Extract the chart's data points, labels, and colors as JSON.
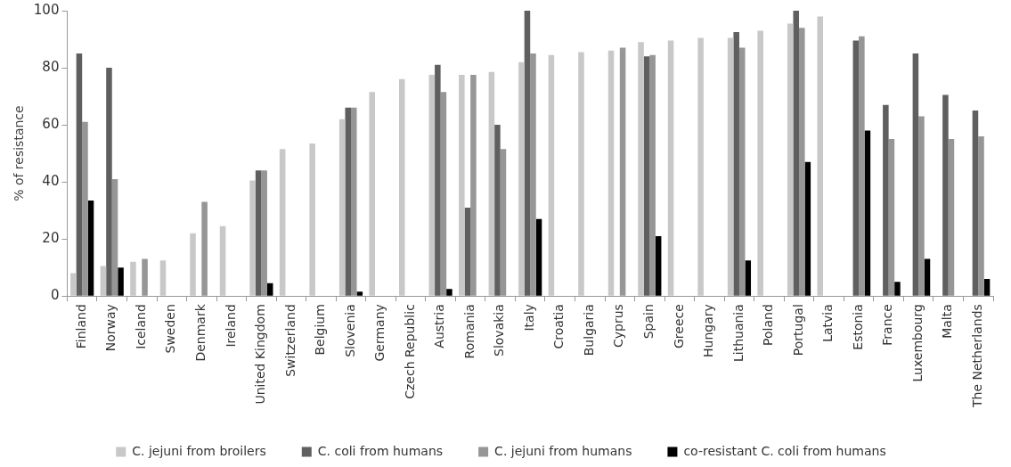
{
  "chart_data": {
    "type": "bar",
    "ylabel": "% of resistance",
    "categories": [
      "Finland",
      "Norway",
      "Iceland",
      "Sweden",
      "Denmark",
      "Ireland",
      "United Kingdom",
      "Switzerland",
      "Belgium",
      "Slovenia",
      "Germany",
      "Czech Republic",
      "Austria",
      "Romania",
      "Slovakia",
      "Italy",
      "Croatia",
      "Bulgaria",
      "Cyprus",
      "Spain",
      "Greece",
      "Hungary",
      "Lithuania",
      "Poland",
      "Portugal",
      "Latvia",
      "Estonia",
      "France",
      "Luxembourg",
      "Malta",
      "The Netherlands"
    ],
    "series": [
      {
        "name": "C. jejuni from broilers",
        "color": "#c8c8c8",
        "values": [
          8,
          10.5,
          12,
          12.5,
          22,
          24.5,
          40.5,
          51.5,
          53.5,
          62,
          71.5,
          76,
          77.5,
          77.5,
          78.5,
          82,
          84.5,
          85.5,
          86,
          89,
          89.5,
          90.5,
          90.5,
          93,
          95.5,
          98,
          null,
          null,
          null,
          null,
          null
        ]
      },
      {
        "name": "C. coli from humans",
        "color": "#5f5f5f",
        "values": [
          85,
          80,
          null,
          null,
          null,
          null,
          44,
          null,
          null,
          66,
          null,
          null,
          81,
          31,
          60,
          100,
          null,
          null,
          null,
          84,
          null,
          null,
          92.5,
          null,
          100,
          null,
          89.5,
          67,
          85,
          70.5,
          65
        ]
      },
      {
        "name": "C. jejuni from humans",
        "color": "#969696",
        "values": [
          61,
          41,
          13,
          null,
          33,
          null,
          44,
          null,
          null,
          66,
          null,
          null,
          71.5,
          77.5,
          51.5,
          85,
          null,
          null,
          87,
          84.5,
          null,
          null,
          87,
          null,
          94,
          null,
          91,
          55,
          63,
          55,
          56
        ]
      },
      {
        "name": "co-resistant C. coli from humans",
        "color": "#000000",
        "values": [
          33.5,
          10,
          null,
          null,
          null,
          null,
          4.5,
          null,
          null,
          1.5,
          null,
          null,
          2.5,
          null,
          null,
          27,
          null,
          null,
          null,
          21,
          null,
          null,
          12.5,
          null,
          47,
          null,
          58,
          5,
          13,
          null,
          6
        ]
      }
    ],
    "ylim": [
      0,
      100
    ],
    "yticks": [
      0,
      20,
      40,
      60,
      80,
      100
    ],
    "grid": false,
    "legend": "bottom"
  }
}
